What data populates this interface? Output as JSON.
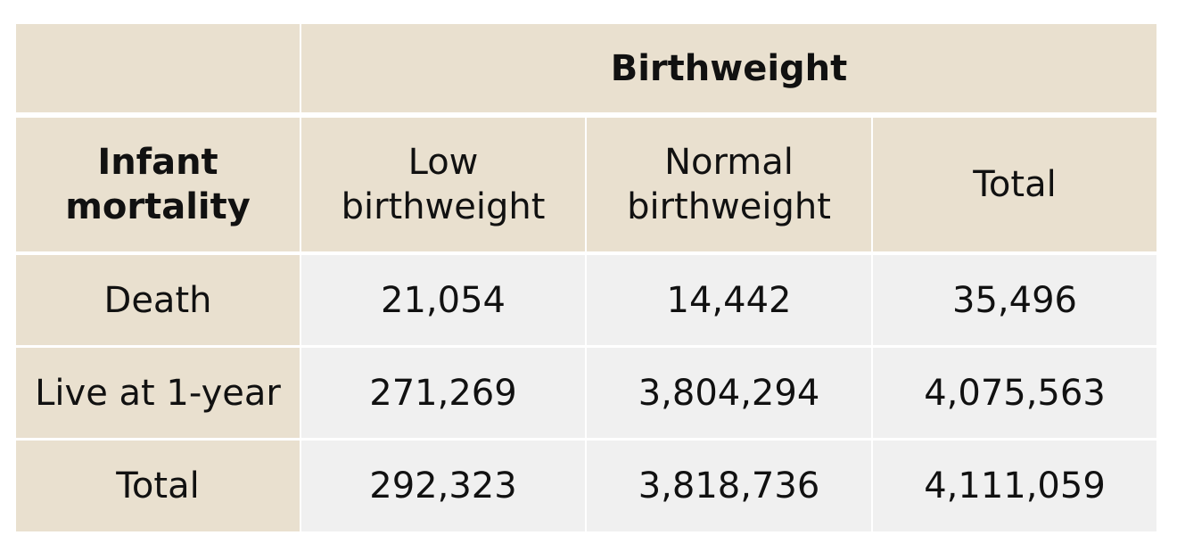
{
  "table": {
    "title": "Birthweight",
    "row_header": "Infant mortality",
    "columns": [
      "Low birthweight",
      "Normal birthweight",
      "Total"
    ],
    "rows": [
      [
        "Death",
        "21,054",
        "14,442",
        "35,496"
      ],
      [
        "Live at 1-year",
        "271,269",
        "3,804,294",
        "4,075,563"
      ],
      [
        "Total",
        "292,323",
        "3,818,736",
        "4,111,059"
      ]
    ]
  }
}
